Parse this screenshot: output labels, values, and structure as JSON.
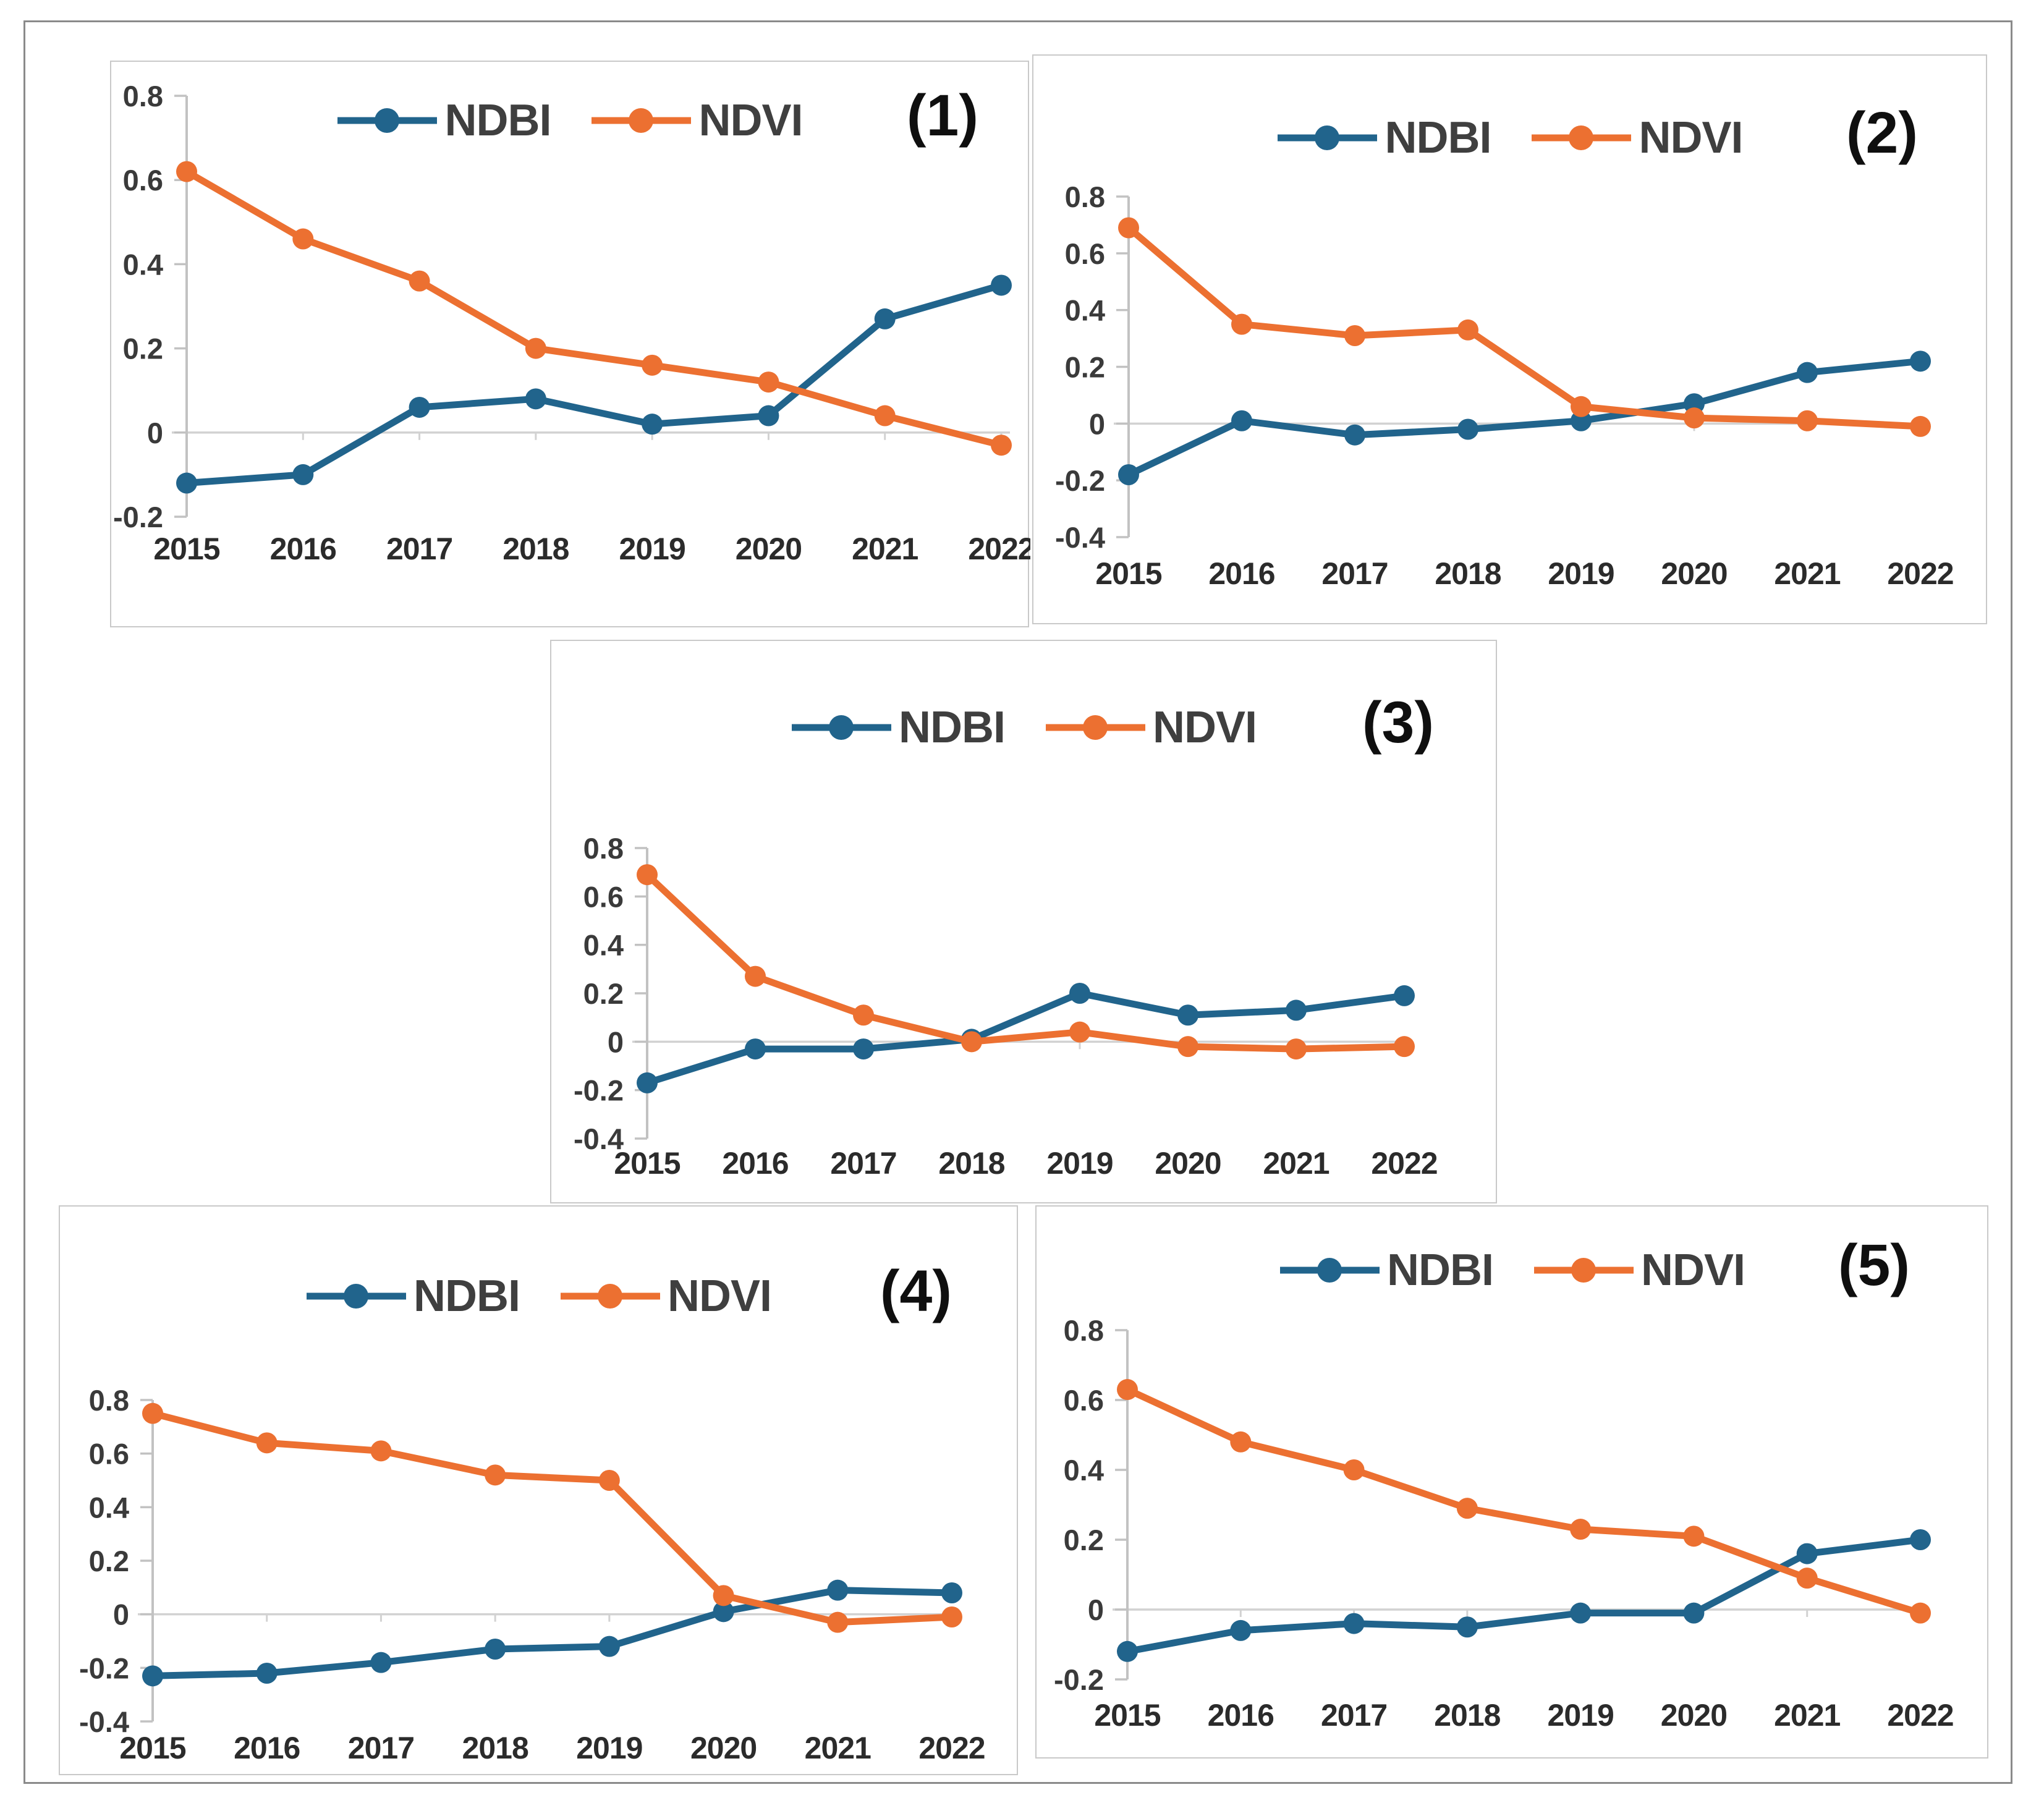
{
  "colors": {
    "ndbi": "#21648C",
    "ndvi": "#EC7031",
    "axis_line": "#C2C2C2",
    "zero_line": "#D2D2D2",
    "tick_text": "#3A3A3A",
    "year_text": "#2B2B2B",
    "legend_text": "#3F3F3F",
    "panel_number_text": "#0F0F0F",
    "panel_border": "#C9C9C9",
    "frame_border": "#8A8A8A"
  },
  "chart_data": [
    {
      "type": "line",
      "title": "(1)",
      "x": [
        2015,
        2016,
        2017,
        2018,
        2019,
        2020,
        2021,
        2022
      ],
      "series": [
        {
          "name": "NDBI",
          "color_key": "ndbi",
          "values": [
            -0.12,
            -0.1,
            0.06,
            0.08,
            0.02,
            0.04,
            0.27,
            0.35
          ]
        },
        {
          "name": "NDVI",
          "color_key": "ndvi",
          "values": [
            0.62,
            0.46,
            0.36,
            0.2,
            0.16,
            0.12,
            0.04,
            -0.03
          ]
        }
      ],
      "ylim": [
        -0.2,
        0.8
      ],
      "ytick_step": 0.2,
      "legend_position": "top",
      "grid": "zero-line-only"
    },
    {
      "type": "line",
      "title": "(2)",
      "x": [
        2015,
        2016,
        2017,
        2018,
        2019,
        2020,
        2021,
        2022
      ],
      "series": [
        {
          "name": "NDBI",
          "color_key": "ndbi",
          "values": [
            -0.18,
            0.01,
            -0.04,
            -0.02,
            0.01,
            0.07,
            0.18,
            0.22
          ]
        },
        {
          "name": "NDVI",
          "color_key": "ndvi",
          "values": [
            0.69,
            0.35,
            0.31,
            0.33,
            0.06,
            0.02,
            0.01,
            -0.01
          ]
        }
      ],
      "ylim": [
        -0.4,
        0.8
      ],
      "ytick_step": 0.2,
      "legend_position": "top",
      "grid": "zero-line-only"
    },
    {
      "type": "line",
      "title": "(3)",
      "x": [
        2015,
        2016,
        2017,
        2018,
        2019,
        2020,
        2021,
        2022
      ],
      "series": [
        {
          "name": "NDBI",
          "color_key": "ndbi",
          "values": [
            -0.17,
            -0.03,
            -0.03,
            0.01,
            0.2,
            0.11,
            0.13,
            0.19
          ]
        },
        {
          "name": "NDVI",
          "color_key": "ndvi",
          "values": [
            0.69,
            0.27,
            0.11,
            0.0,
            0.04,
            -0.02,
            -0.03,
            -0.02
          ]
        }
      ],
      "ylim": [
        -0.4,
        0.8
      ],
      "ytick_step": 0.2,
      "legend_position": "top",
      "grid": "zero-line-only"
    },
    {
      "type": "line",
      "title": "(4)",
      "x": [
        2015,
        2016,
        2017,
        2018,
        2019,
        2020,
        2021,
        2022
      ],
      "series": [
        {
          "name": "NDBI",
          "color_key": "ndbi",
          "values": [
            -0.23,
            -0.22,
            -0.18,
            -0.13,
            -0.12,
            0.01,
            0.09,
            0.08
          ]
        },
        {
          "name": "NDVI",
          "color_key": "ndvi",
          "values": [
            0.75,
            0.64,
            0.61,
            0.52,
            0.5,
            0.07,
            -0.03,
            -0.01
          ]
        }
      ],
      "ylim": [
        -0.4,
        0.8
      ],
      "ytick_step": 0.2,
      "legend_position": "top",
      "grid": "zero-line-only"
    },
    {
      "type": "line",
      "title": "(5)",
      "x": [
        2015,
        2016,
        2017,
        2018,
        2019,
        2020,
        2021,
        2022
      ],
      "series": [
        {
          "name": "NDBI",
          "color_key": "ndbi",
          "values": [
            -0.12,
            -0.06,
            -0.04,
            -0.05,
            -0.01,
            -0.01,
            0.16,
            0.2
          ]
        },
        {
          "name": "NDVI",
          "color_key": "ndvi",
          "values": [
            0.63,
            0.48,
            0.4,
            0.29,
            0.23,
            0.21,
            0.09,
            -0.01
          ]
        }
      ],
      "ylim": [
        -0.2,
        0.8
      ],
      "ytick_step": 0.2,
      "legend_position": "top",
      "grid": "zero-line-only"
    }
  ]
}
